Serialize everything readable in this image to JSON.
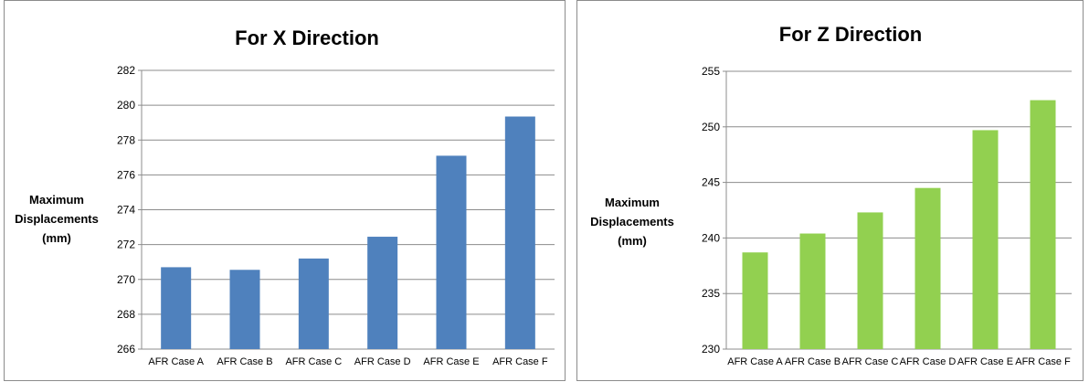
{
  "chart_data": [
    {
      "type": "bar",
      "title": "For X Direction",
      "ylabel_lines": [
        "Maximum",
        "Displacements",
        "(mm)"
      ],
      "categories": [
        "AFR Case A",
        "AFR Case B",
        "AFR Case C",
        "AFR Case D",
        "AFR Case E",
        "AFR Case F"
      ],
      "values": [
        270.7,
        270.55,
        271.2,
        272.45,
        277.1,
        279.35
      ],
      "ylim": [
        266,
        282
      ],
      "yticks": [
        266,
        268,
        270,
        272,
        274,
        276,
        278,
        280,
        282
      ],
      "grid": true,
      "legend": "none",
      "bar_color": "#4f81bd"
    },
    {
      "type": "bar",
      "title": "For Z Direction",
      "ylabel_lines": [
        "Maximum",
        "Displacements",
        "(mm)"
      ],
      "categories": [
        "AFR Case A",
        "AFR Case B",
        "AFR Case C",
        "AFR Case D",
        "AFR Case E",
        "AFR Case F"
      ],
      "values": [
        238.7,
        240.4,
        242.3,
        244.5,
        249.7,
        252.4
      ],
      "ylim": [
        230,
        255
      ],
      "yticks": [
        230,
        235,
        240,
        245,
        250,
        255
      ],
      "grid": true,
      "legend": "none",
      "bar_color": "#92d050"
    }
  ]
}
